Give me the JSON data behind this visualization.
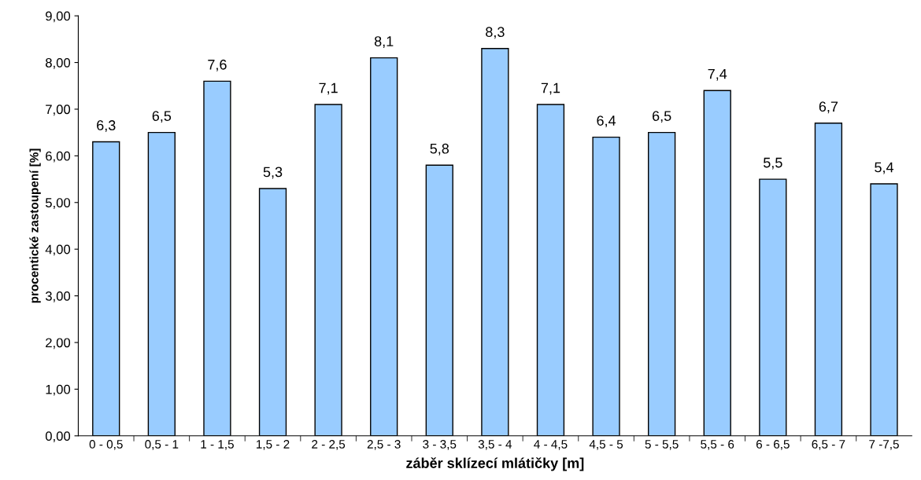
{
  "chart_data": {
    "type": "bar",
    "xlabel": "záběr sklízecí mlátičky [m]",
    "ylabel": "procentické zastoupení [%]",
    "categories": [
      "0 - 0,5",
      "0,5 - 1",
      "1 - 1,5",
      "1,5 - 2",
      "2 - 2,5",
      "2,5 - 3",
      "3 - 3,5",
      "3,5 - 4",
      "4 - 4,5",
      "4,5 - 5",
      "5 - 5,5",
      "5,5 - 6",
      "6 - 6,5",
      "6,5 - 7",
      "7 -7,5"
    ],
    "values": [
      6.3,
      6.5,
      7.6,
      5.3,
      7.1,
      8.1,
      5.8,
      8.3,
      7.1,
      6.4,
      6.5,
      7.4,
      5.5,
      6.7,
      5.4
    ],
    "value_labels": [
      "6,3",
      "6,5",
      "7,6",
      "5,3",
      "7,1",
      "8,1",
      "5,8",
      "8,3",
      "7,1",
      "6,4",
      "6,5",
      "7,4",
      "5,5",
      "6,7",
      "5,4"
    ],
    "color": "#99ccff",
    "ylim": [
      0,
      9
    ],
    "yticks": [
      {
        "value": 0,
        "label": "0,00"
      },
      {
        "value": 1,
        "label": "1,00"
      },
      {
        "value": 2,
        "label": "2,00"
      },
      {
        "value": 3,
        "label": "3,00"
      },
      {
        "value": 4,
        "label": "4,00"
      },
      {
        "value": 5,
        "label": "5,00"
      },
      {
        "value": 6,
        "label": "6,00"
      },
      {
        "value": 7,
        "label": "7,00"
      },
      {
        "value": 8,
        "label": "8,00"
      },
      {
        "value": 9,
        "label": "9,00"
      }
    ],
    "grid": false
  }
}
